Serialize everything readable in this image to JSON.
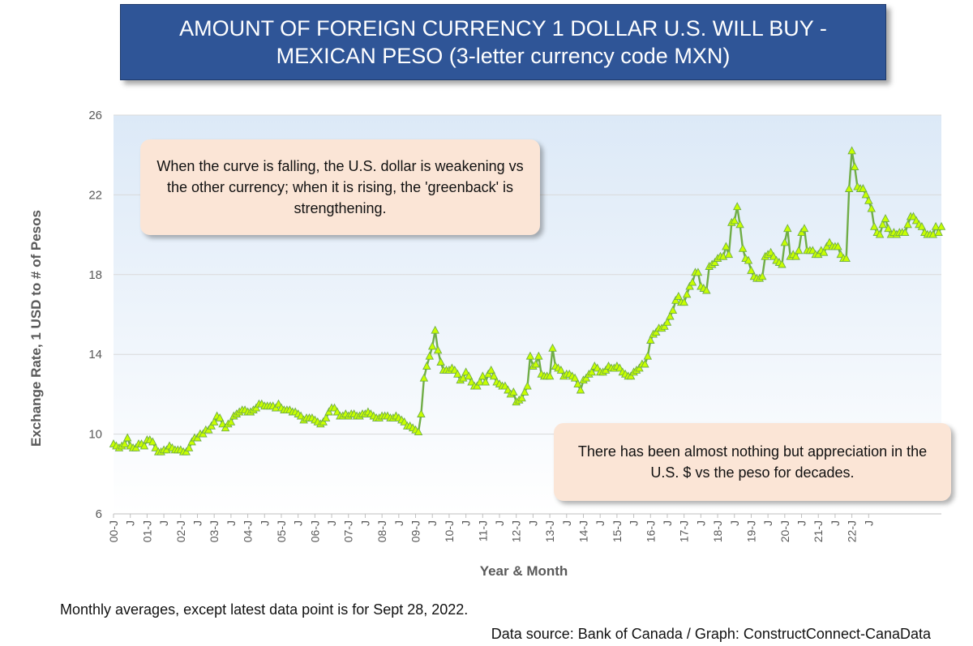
{
  "title": {
    "line1": "AMOUNT OF FOREIGN CURRENCY 1 DOLLAR U.S. WILL BUY -",
    "line2": "MEXICAN PESO (3-letter currency code MXN)"
  },
  "annotations": {
    "falling_rising": "When the curve is falling, the U.S. dollar is weakening vs the other currency; when it is rising, the 'greenback' is strengthening.",
    "appreciation": "There has been almost nothing but appreciation in the U.S. $ vs the peso for decades."
  },
  "footnote": "Monthly averages, except latest data point is for Sept 28, 2022.",
  "source": "Data source: Bank of Canada / Graph: ConstructConnect-CanaData",
  "colors": {
    "line": "#70ad47",
    "marker_fill": "#c8ff00",
    "plot_bg_top": "#dce9f7",
    "plot_bg_bottom": "#ffffff",
    "title_bg": "#2f5597",
    "note_bg": "#fbe5d6"
  },
  "chart_data": {
    "type": "line",
    "xlabel": "Year & Month",
    "ylabel": "Exchange Rate, 1 USD to # of Pesos",
    "ylim": [
      6,
      26
    ],
    "yticks": [
      6,
      10,
      14,
      18,
      22,
      26
    ],
    "grid": true,
    "marker": "triangle",
    "x_tick_labels": [
      "00-J",
      "J",
      "01-J",
      "J",
      "02-J",
      "J",
      "03-J",
      "J",
      "04-J",
      "J",
      "05-J",
      "J",
      "06-J",
      "J",
      "07-J",
      "J",
      "08-J",
      "J",
      "09-J",
      "J",
      "10-J",
      "J",
      "11-J",
      "J",
      "12-J",
      "J",
      "13-J",
      "J",
      "14-J",
      "J",
      "15-J",
      "J",
      "16-J",
      "J",
      "17-J",
      "J",
      "18-J",
      "J",
      "19-J",
      "J",
      "20-J",
      "J",
      "21-J",
      "J",
      "22-J",
      "J"
    ],
    "start_month": "2000-01",
    "values": [
      9.5,
      9.4,
      9.3,
      9.4,
      9.5,
      9.8,
      9.4,
      9.3,
      9.3,
      9.5,
      9.5,
      9.4,
      9.7,
      9.7,
      9.6,
      9.3,
      9.1,
      9.1,
      9.2,
      9.2,
      9.4,
      9.3,
      9.2,
      9.2,
      9.2,
      9.1,
      9.1,
      9.3,
      9.6,
      9.8,
      9.8,
      10.0,
      10.0,
      10.2,
      10.2,
      10.4,
      10.6,
      10.9,
      10.8,
      10.5,
      10.3,
      10.5,
      10.6,
      10.9,
      11.0,
      11.1,
      11.2,
      11.2,
      11.1,
      11.1,
      11.2,
      11.3,
      11.5,
      11.5,
      11.4,
      11.4,
      11.4,
      11.4,
      11.3,
      11.5,
      11.3,
      11.2,
      11.2,
      11.2,
      11.1,
      11.1,
      11.0,
      10.9,
      10.7,
      10.8,
      10.8,
      10.8,
      10.7,
      10.6,
      10.5,
      10.6,
      10.8,
      11.1,
      11.3,
      11.3,
      11.1,
      10.9,
      10.9,
      11.0,
      10.9,
      11.0,
      11.0,
      10.9,
      10.9,
      11.0,
      11.0,
      11.1,
      11.0,
      10.9,
      10.8,
      10.8,
      10.9,
      10.9,
      10.9,
      10.8,
      10.8,
      10.9,
      10.8,
      10.7,
      10.6,
      10.4,
      10.4,
      10.3,
      10.2,
      10.1,
      11.0,
      12.8,
      13.4,
      13.9,
      14.4,
      15.2,
      14.2,
      13.6,
      13.2,
      13.2,
      13.2,
      13.3,
      13.2,
      13.0,
      12.7,
      12.8,
      13.1,
      12.9,
      12.6,
      12.4,
      12.4,
      12.6,
      12.9,
      12.6,
      13.0,
      13.2,
      12.9,
      12.6,
      12.5,
      12.4,
      12.4,
      12.2,
      12.0,
      12.1,
      11.6,
      11.7,
      11.8,
      12.1,
      12.4,
      13.9,
      13.4,
      13.5,
      13.9,
      13.0,
      12.9,
      12.9,
      12.9,
      14.3,
      13.4,
      13.3,
      13.2,
      12.9,
      13.0,
      13.0,
      12.9,
      12.8,
      12.5,
      12.2,
      12.7,
      12.8,
      13.0,
      13.1,
      13.4,
      13.3,
      13.1,
      13.1,
      13.2,
      13.4,
      13.3,
      13.3,
      13.4,
      13.3,
      13.1,
      13.0,
      12.9,
      12.9,
      13.1,
      13.2,
      13.3,
      13.5,
      13.5,
      13.9,
      14.7,
      15.0,
      15.1,
      15.3,
      15.3,
      15.4,
      15.6,
      15.9,
      16.2,
      16.7,
      16.9,
      16.6,
      16.6,
      17.0,
      17.4,
      17.6,
      18.1,
      18.1,
      17.4,
      17.3,
      17.2,
      18.4,
      18.5,
      18.6,
      18.8,
      18.9,
      18.9,
      19.4,
      19.0,
      20.6,
      20.7,
      21.4,
      20.5,
      19.3,
      18.8,
      18.7,
      18.2,
      17.9,
      17.8,
      17.8,
      17.9,
      18.9,
      19.0,
      19.1,
      18.9,
      18.7,
      18.6,
      18.5,
      19.6,
      20.3,
      18.9,
      19.0,
      18.9,
      19.2,
      20.1,
      20.3,
      19.2,
      19.2,
      19.2,
      19.0,
      19.0,
      19.2,
      19.1,
      19.4,
      19.6,
      19.4,
      19.4,
      19.4,
      19.0,
      18.8,
      18.8,
      22.3,
      24.2,
      23.4,
      22.4,
      22.3,
      22.3,
      22.0,
      21.7,
      21.3,
      20.4,
      20.1,
      20.0,
      20.5,
      20.8,
      20.3,
      20.0,
      20.1,
      20.0,
      20.1,
      20.1,
      20.1,
      20.5,
      20.9,
      20.9,
      20.7,
      20.5,
      20.4,
      20.1,
      20.0,
      20.0,
      20.0,
      20.4,
      20.1,
      20.4
    ]
  }
}
